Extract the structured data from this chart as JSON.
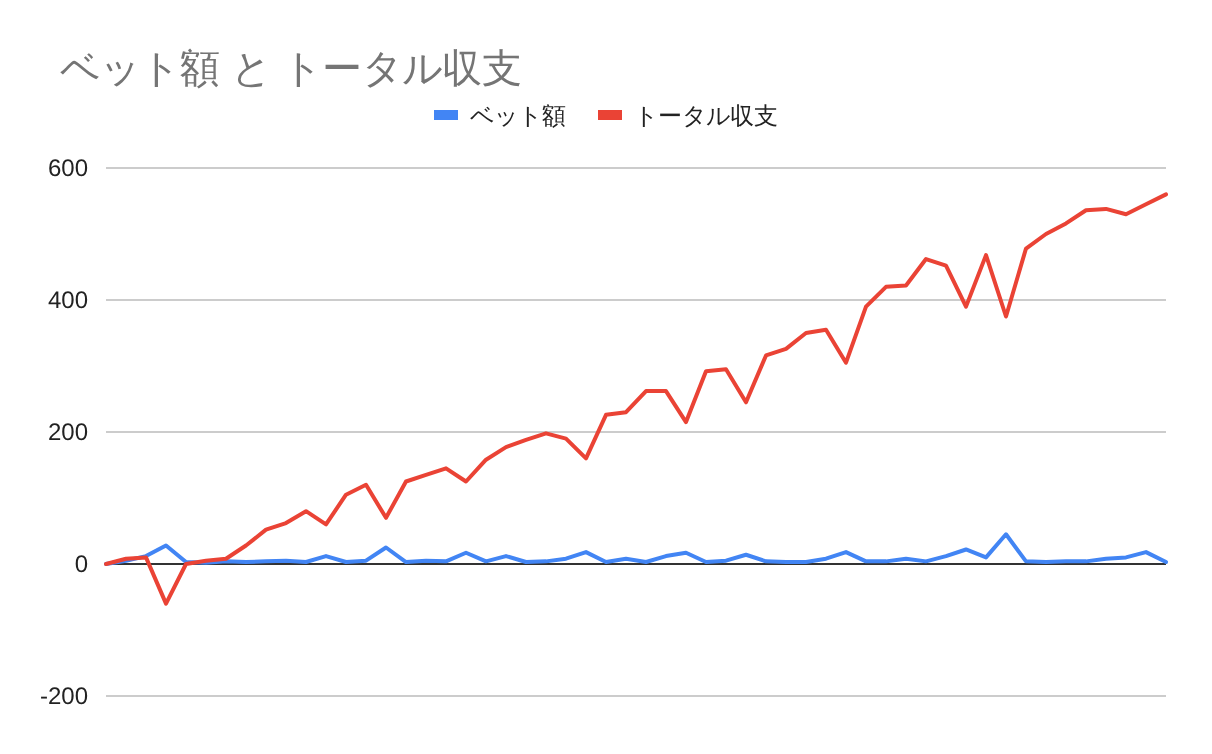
{
  "chart_data": {
    "type": "line",
    "title": "ベット額 と トータル収支",
    "categories": [
      null,
      null,
      null,
      null,
      null,
      null,
      null,
      null,
      null,
      null,
      null,
      null,
      null,
      null,
      null,
      null,
      null,
      null,
      null,
      null,
      null,
      null,
      null,
      null,
      null,
      null,
      null,
      null,
      null,
      null,
      null,
      null,
      null,
      null,
      null,
      null,
      null,
      null,
      null,
      null,
      null,
      null,
      null,
      null,
      null,
      null,
      null,
      null,
      null,
      null,
      null,
      null,
      null,
      null
    ],
    "series": [
      {
        "name": "ベット額",
        "color": "#4285f4",
        "values": [
          0,
          5,
          12,
          28,
          3,
          2,
          4,
          3,
          4,
          5,
          3,
          12,
          3,
          5,
          25,
          3,
          5,
          4,
          17,
          4,
          12,
          3,
          4,
          8,
          18,
          3,
          8,
          3,
          12,
          17,
          3,
          5,
          14,
          4,
          3,
          3,
          8,
          18,
          4,
          4,
          8,
          4,
          12,
          22,
          10,
          45,
          4,
          3,
          4,
          4,
          8,
          10,
          18,
          3
        ]
      },
      {
        "name": "トータル収支",
        "color": "#ea4335",
        "values": [
          0,
          8,
          10,
          -60,
          0,
          5,
          8,
          28,
          52,
          62,
          80,
          60,
          105,
          120,
          70,
          125,
          135,
          145,
          125,
          158,
          177,
          188,
          198,
          190,
          160,
          226,
          230,
          262,
          262,
          215,
          292,
          295,
          245,
          316,
          326,
          350,
          355,
          305,
          390,
          420,
          422,
          462,
          452,
          390,
          468,
          375,
          478,
          500,
          516,
          536,
          538,
          530,
          545,
          560
        ]
      }
    ],
    "ylim": [
      -200,
      600
    ],
    "yticks": [
      -200,
      0,
      200,
      400,
      600
    ],
    "grid": "y",
    "legend": "top"
  }
}
